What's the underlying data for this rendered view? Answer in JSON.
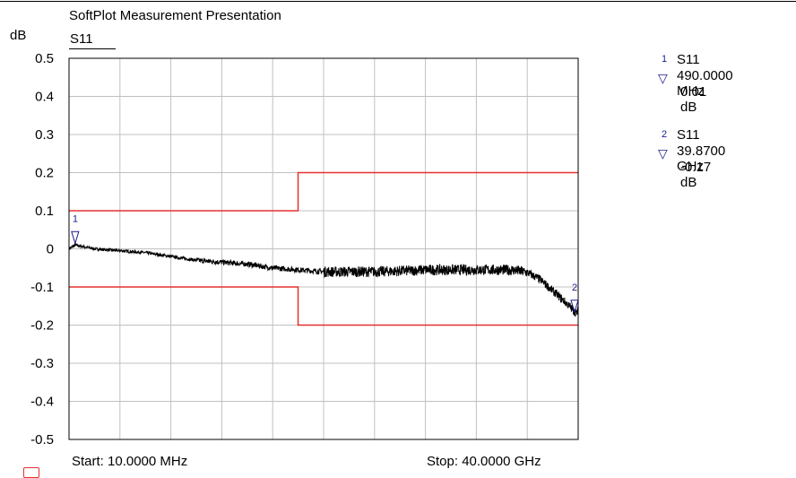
{
  "header": {
    "title": "SoftPlot Measurement Presentation",
    "y_unit": "dB",
    "trace_name": "S11"
  },
  "footer": {
    "start": "Start: 10.0000 MHz",
    "stop": "Stop: 40.0000 GHz"
  },
  "colors": {
    "trace": "#000000",
    "limit": "#e53030",
    "marker": "#1a1a8c",
    "grid": "#c0c0c0"
  },
  "markers": [
    {
      "id": "1",
      "trace": "S11",
      "x_text": "490.0000 MHz",
      "y_text": "0.01 dB"
    },
    {
      "id": "2",
      "trace": "S11",
      "x_text": "39.8700 GHz",
      "y_text": "-0.17 dB"
    }
  ],
  "chart_data": {
    "type": "line",
    "title": "SoftPlot Measurement Presentation",
    "ylabel": "dB",
    "xlim": [
      0.01,
      40.0
    ],
    "x_unit": "GHz",
    "ylim": [
      -0.5,
      0.5
    ],
    "y_ticks": [
      "0.5",
      "0.4",
      "0.3",
      "0.2",
      "0.1",
      "0",
      "-0.1",
      "-0.2",
      "-0.3",
      "-0.4",
      "-0.5"
    ],
    "x_divisions": 10,
    "grid": true,
    "series": [
      {
        "name": "S11",
        "x": [
          0.01,
          0.49,
          2,
          4,
          6,
          8,
          10,
          12,
          14,
          16,
          18,
          20,
          22,
          24,
          26,
          28,
          30,
          32,
          34,
          35,
          36,
          37,
          38,
          39,
          39.87,
          40
        ],
        "y": [
          0.0,
          0.01,
          0.0,
          -0.005,
          -0.01,
          -0.02,
          -0.03,
          -0.035,
          -0.04,
          -0.05,
          -0.055,
          -0.06,
          -0.06,
          -0.06,
          -0.058,
          -0.055,
          -0.055,
          -0.055,
          -0.055,
          -0.056,
          -0.062,
          -0.08,
          -0.11,
          -0.14,
          -0.17,
          -0.16
        ]
      }
    ],
    "limit_lines": {
      "upper": {
        "x": [
          0.01,
          18.0,
          18.0,
          40.0
        ],
        "y": [
          0.1,
          0.1,
          0.2,
          0.2
        ]
      },
      "lower": {
        "x": [
          0.01,
          18.0,
          18.0,
          40.0
        ],
        "y": [
          -0.1,
          -0.1,
          -0.2,
          -0.2
        ]
      }
    },
    "markers": [
      {
        "label": "1",
        "x": 0.49,
        "y": 0.01
      },
      {
        "label": "2",
        "x": 39.87,
        "y": -0.17
      }
    ]
  }
}
